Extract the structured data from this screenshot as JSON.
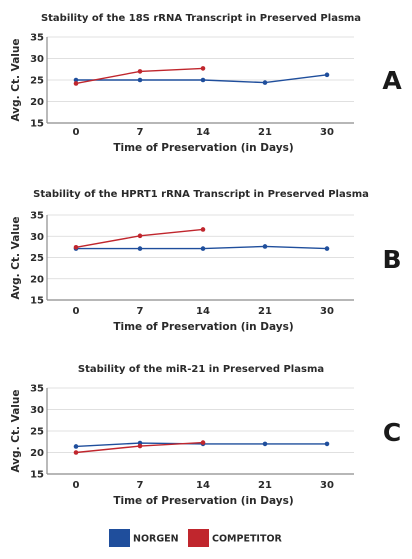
{
  "colors": {
    "norgen": "#1f4e9c",
    "competitor": "#c0262d"
  },
  "legend": {
    "items": [
      {
        "label": "NORGEN",
        "color": "#1f4e9c"
      },
      {
        "label": "COMPETITOR",
        "color": "#c0262d"
      }
    ]
  },
  "chart_data": [
    {
      "type": "line",
      "panel": "A",
      "title": "Stability of the 18S rRNA Transcript in Preserved Plasma",
      "xlabel": "Time of Preservation (in Days)",
      "ylabel": "Avg. Ct. Value",
      "categories": [
        "0",
        "7",
        "14",
        "21",
        "30"
      ],
      "yticks": [
        "15",
        "20",
        "25",
        "30",
        "35"
      ],
      "ylim": [
        15,
        35
      ],
      "grid": "horizontal",
      "series": [
        {
          "name": "NORGEN",
          "color": "#1f4e9c",
          "values": [
            25.0,
            25.0,
            25.0,
            24.4,
            26.2
          ]
        },
        {
          "name": "COMPETITOR",
          "color": "#c0262d",
          "values": [
            24.2,
            27.0,
            27.7,
            null,
            null
          ]
        }
      ]
    },
    {
      "type": "line",
      "panel": "B",
      "title": "Stability of the HPRT1 rRNA Transcript in Preserved Plasma",
      "xlabel": "Time of Preservation (in Days)",
      "ylabel": "Avg. Ct. Value",
      "categories": [
        "0",
        "7",
        "14",
        "21",
        "30"
      ],
      "yticks": [
        "15",
        "20",
        "25",
        "30",
        "35"
      ],
      "ylim": [
        15,
        35
      ],
      "grid": "horizontal",
      "series": [
        {
          "name": "NORGEN",
          "color": "#1f4e9c",
          "values": [
            27.1,
            27.1,
            27.1,
            27.6,
            27.1
          ]
        },
        {
          "name": "COMPETITOR",
          "color": "#c0262d",
          "values": [
            27.4,
            30.1,
            31.6,
            null,
            null
          ]
        }
      ]
    },
    {
      "type": "line",
      "panel": "C",
      "title": "Stability of the miR-21 in Preserved Plasma",
      "xlabel": "Time of Preservation (in Days)",
      "ylabel": "Avg. Ct. Value",
      "categories": [
        "0",
        "7",
        "14",
        "21",
        "30"
      ],
      "yticks": [
        "15",
        "20",
        "25",
        "30",
        "35"
      ],
      "ylim": [
        15,
        35
      ],
      "grid": "horizontal",
      "series": [
        {
          "name": "NORGEN",
          "color": "#1f4e9c",
          "values": [
            21.4,
            22.2,
            22.0,
            22.0,
            22.0
          ]
        },
        {
          "name": "COMPETITOR",
          "color": "#c0262d",
          "values": [
            20.0,
            21.5,
            22.3,
            null,
            null
          ]
        }
      ]
    }
  ]
}
